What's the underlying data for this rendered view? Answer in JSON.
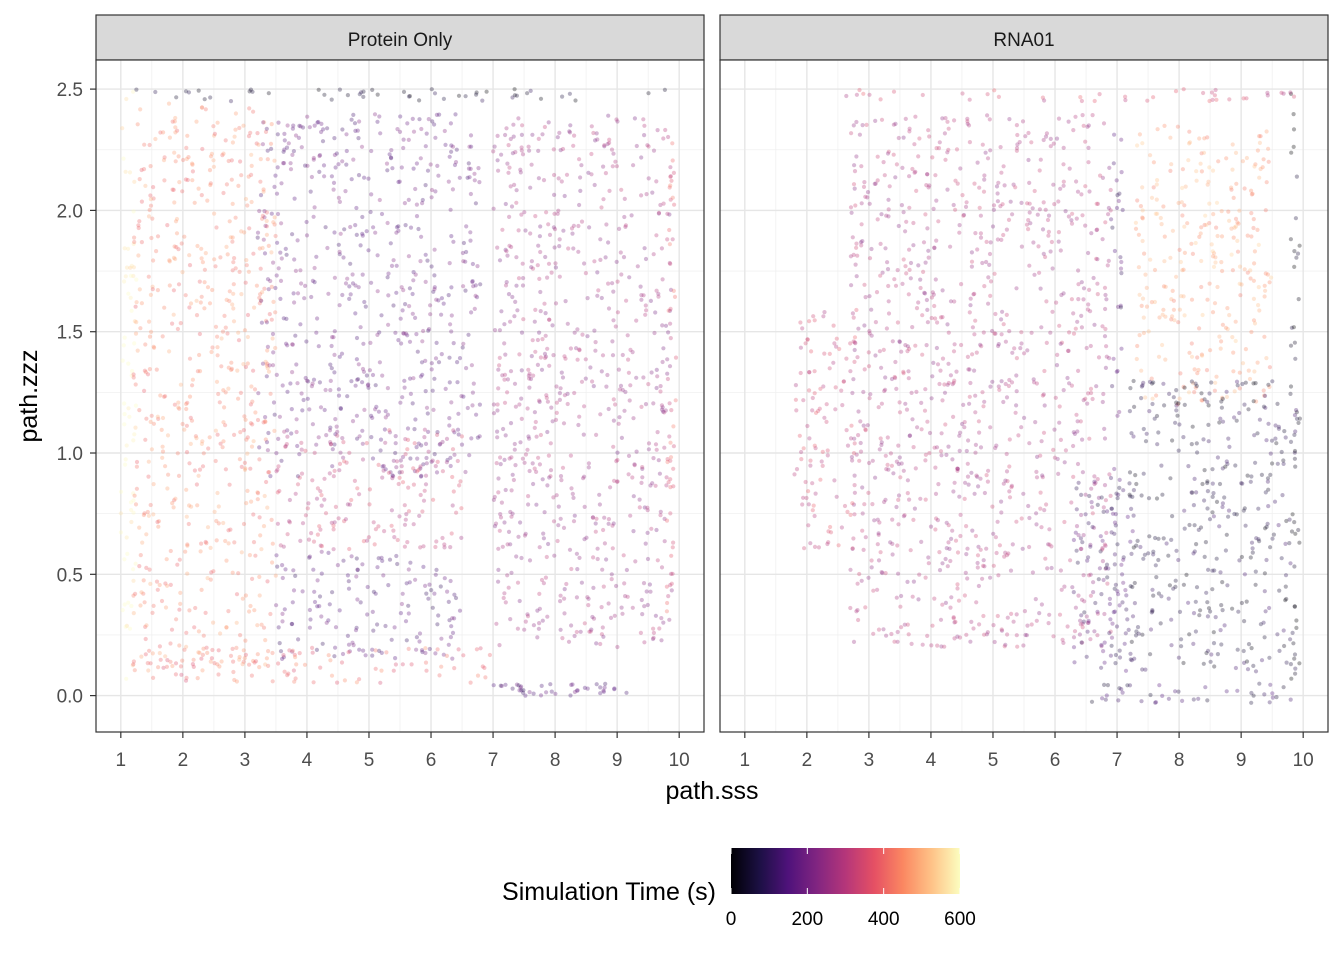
{
  "chart_data": {
    "type": "scatter",
    "xlabel": "path.sss",
    "ylabel": "path.zzz",
    "xlim": [
      0.6,
      10.4
    ],
    "ylim": [
      -0.15,
      2.62
    ],
    "x_ticks": [
      "1",
      "2",
      "3",
      "4",
      "5",
      "6",
      "7",
      "8",
      "9",
      "10"
    ],
    "y_ticks": [
      "0.0",
      "0.5",
      "1.0",
      "1.5",
      "2.0",
      "2.5"
    ],
    "grid": true,
    "theme": "bw",
    "facets": [
      {
        "label": "Protein Only",
        "regions": [
          {
            "x": [
              1.0,
              1.25
            ],
            "y": [
              0.05,
              2.5
            ],
            "time": 590
          },
          {
            "x": [
              1.2,
              3.5
            ],
            "y": [
              0.1,
              2.45
            ],
            "time": 440
          },
          {
            "x": [
              3.2,
              6.8
            ],
            "y": [
              0.9,
              2.4
            ],
            "time": 180
          },
          {
            "x": [
              3.5,
              6.5
            ],
            "y": [
              0.6,
              1.1
            ],
            "time": 320
          },
          {
            "x": [
              3.5,
              6.5
            ],
            "y": [
              0.15,
              0.6
            ],
            "time": 160
          },
          {
            "x": [
              7.0,
              9.9
            ],
            "y": [
              0.2,
              2.4
            ],
            "time": 260
          },
          {
            "x": [
              9.8,
              9.95
            ],
            "y": [
              0.3,
              2.5
            ],
            "time": 380
          },
          {
            "x": [
              1.3,
              7.0
            ],
            "y": [
              0.05,
              0.2
            ],
            "time": 400
          },
          {
            "x": [
              7.0,
              9.2
            ],
            "y": [
              0.0,
              0.05
            ],
            "time": 150
          },
          {
            "x": [
              1.0,
              9.9
            ],
            "y": [
              2.45,
              2.5
            ],
            "time": 40
          }
        ]
      },
      {
        "label": "RNA01",
        "regions": [
          {
            "x": [
              2.7,
              6.9
            ],
            "y": [
              0.2,
              2.4
            ],
            "time": 280
          },
          {
            "x": [
              1.8,
              2.8
            ],
            "y": [
              0.6,
              1.6
            ],
            "time": 330
          },
          {
            "x": [
              6.3,
              7.3
            ],
            "y": [
              0.1,
              0.9
            ],
            "time": 120
          },
          {
            "x": [
              7.3,
              9.5
            ],
            "y": [
              1.2,
              2.35
            ],
            "time": 480
          },
          {
            "x": [
              7.2,
              9.9
            ],
            "y": [
              0.1,
              1.3
            ],
            "time": 70
          },
          {
            "x": [
              6.5,
              9.8
            ],
            "y": [
              -0.03,
              0.05
            ],
            "time": 100
          },
          {
            "x": [
              9.8,
              9.95
            ],
            "y": [
              0.05,
              2.5
            ],
            "time": 20
          },
          {
            "x": [
              2.5,
              9.9
            ],
            "y": [
              2.45,
              2.5
            ],
            "time": 330
          },
          {
            "x": [
              6.9,
              7.1
            ],
            "y": [
              0.1,
              2.45
            ],
            "time": 140
          }
        ]
      }
    ],
    "legend": {
      "title": "Simulation Time (s)",
      "placement": "bottom",
      "scale": "magma",
      "limits": [
        0,
        600
      ],
      "breaks": [
        "0",
        "200",
        "400",
        "600"
      ]
    }
  }
}
